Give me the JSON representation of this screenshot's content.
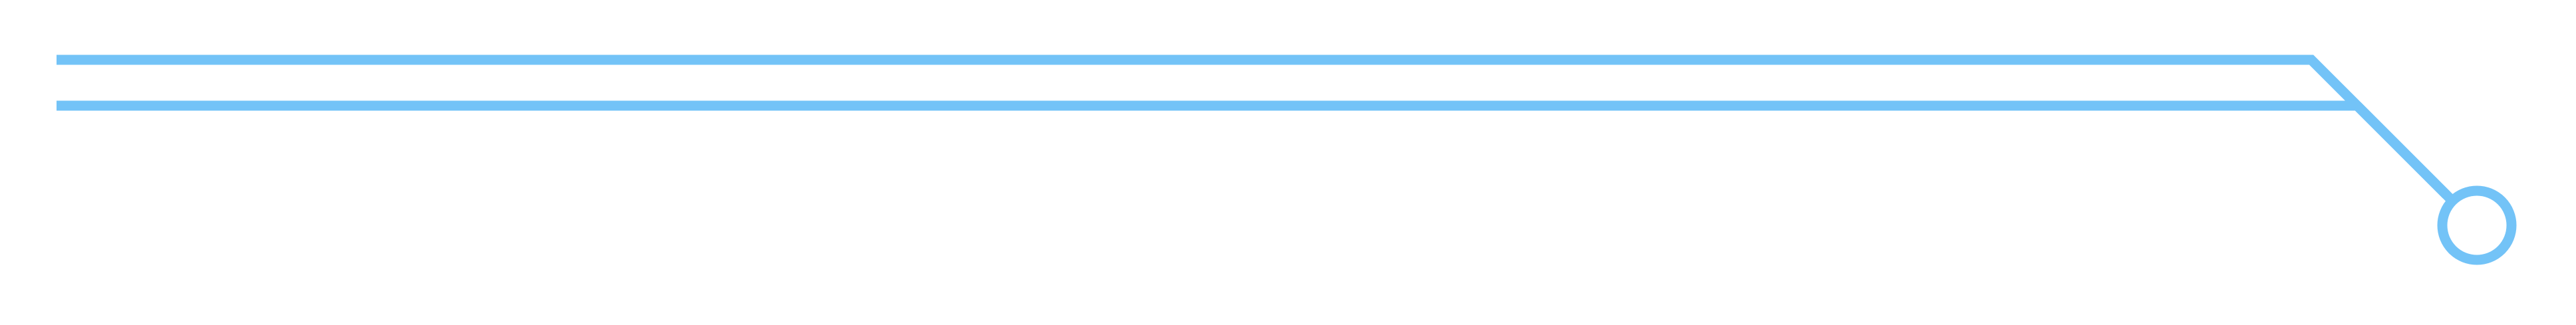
{
  "graphic": {
    "accent_color": "#73C3F7",
    "background_color": "#FFFFFF",
    "icon": "circuit-trace-terminal-icon"
  }
}
